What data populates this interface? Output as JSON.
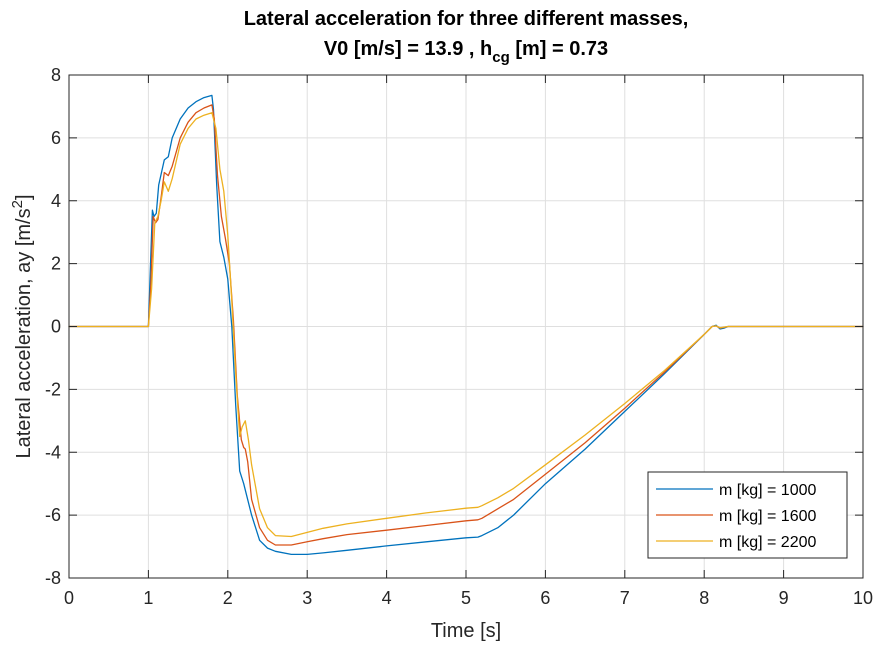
{
  "chart_data": {
    "type": "line",
    "title_line1": "Lateral acceleration for three different masses,",
    "title_line2_prefix": "V0 [m/s] = 13.9 , h",
    "title_line2_sub": "cg",
    "title_line2_suffix": " [m] = 0.73",
    "xlabel": "Time [s]",
    "ylabel_main": "Lateral acceleration, ay [m/s",
    "ylabel_sup": "2",
    "ylabel_end": "]",
    "xlim": [
      0,
      10
    ],
    "ylim": [
      -8,
      8
    ],
    "xticks": [
      "0",
      "1",
      "2",
      "3",
      "4",
      "5",
      "6",
      "7",
      "8",
      "9",
      "10"
    ],
    "yticks": [
      "-8",
      "-6",
      "-4",
      "-2",
      "0",
      "2",
      "4",
      "6",
      "8"
    ],
    "grid": true,
    "legend_position": "bottom-right",
    "series": [
      {
        "name": "m [kg] = 1000",
        "color": "#0072BD",
        "x": [
          0,
          1.0,
          1.02,
          1.05,
          1.07,
          1.1,
          1.13,
          1.2,
          1.25,
          1.3,
          1.4,
          1.5,
          1.6,
          1.7,
          1.8,
          1.82,
          1.86,
          1.9,
          1.95,
          2.0,
          2.05,
          2.1,
          2.15,
          2.2,
          2.3,
          2.4,
          2.5,
          2.6,
          2.8,
          3.0,
          3.2,
          3.5,
          4.0,
          4.5,
          5.0,
          5.15,
          5.2,
          5.4,
          5.6,
          6.0,
          6.5,
          7.0,
          7.5,
          8.0,
          8.1,
          8.15,
          8.2,
          8.25,
          8.3,
          8.5,
          9.0,
          9.5,
          10.0
        ],
        "y": [
          0,
          0,
          1.5,
          3.7,
          3.5,
          3.6,
          4.5,
          5.3,
          5.4,
          6.0,
          6.6,
          6.95,
          7.15,
          7.28,
          7.35,
          6.9,
          4.5,
          2.7,
          2.2,
          1.5,
          0.0,
          -2.5,
          -4.6,
          -5.0,
          -6.0,
          -6.8,
          -7.05,
          -7.15,
          -7.25,
          -7.25,
          -7.2,
          -7.12,
          -6.98,
          -6.85,
          -6.72,
          -6.7,
          -6.65,
          -6.4,
          -6.0,
          -5.0,
          -3.9,
          -2.7,
          -1.5,
          -0.25,
          0.0,
          0.04,
          -0.08,
          -0.05,
          0.0,
          0.0,
          0.0,
          0.0,
          0.0
        ]
      },
      {
        "name": "m [kg] = 1600",
        "color": "#D95319",
        "x": [
          0,
          1.0,
          1.03,
          1.06,
          1.09,
          1.12,
          1.16,
          1.2,
          1.25,
          1.3,
          1.4,
          1.5,
          1.6,
          1.7,
          1.8,
          1.83,
          1.87,
          1.92,
          1.97,
          2.02,
          2.07,
          2.12,
          2.17,
          2.2,
          2.22,
          2.25,
          2.3,
          2.4,
          2.5,
          2.6,
          2.8,
          3.0,
          3.2,
          3.5,
          4.0,
          4.5,
          5.0,
          5.15,
          5.2,
          5.4,
          5.6,
          6.0,
          6.5,
          7.0,
          7.5,
          8.0,
          8.1,
          8.15,
          8.2,
          8.25,
          8.3,
          8.5,
          9.0,
          9.5,
          10.0
        ],
        "y": [
          0,
          0,
          1.3,
          3.5,
          3.3,
          3.4,
          4.1,
          4.9,
          4.8,
          5.1,
          6.0,
          6.5,
          6.8,
          6.95,
          7.05,
          6.6,
          4.8,
          3.5,
          2.8,
          2.0,
          0.2,
          -2.2,
          -3.6,
          -3.85,
          -3.9,
          -4.3,
          -5.5,
          -6.4,
          -6.8,
          -6.95,
          -6.95,
          -6.85,
          -6.75,
          -6.62,
          -6.48,
          -6.33,
          -6.18,
          -6.15,
          -6.1,
          -5.8,
          -5.5,
          -4.7,
          -3.7,
          -2.6,
          -1.45,
          -0.25,
          0.0,
          0.02,
          -0.05,
          -0.03,
          0.0,
          0.0,
          0.0,
          0.0,
          0.0
        ]
      },
      {
        "name": "m [kg] = 2200",
        "color": "#EDB120",
        "x": [
          0,
          1.0,
          1.04,
          1.08,
          1.12,
          1.16,
          1.2,
          1.25,
          1.3,
          1.4,
          1.5,
          1.6,
          1.7,
          1.8,
          1.85,
          1.9,
          1.95,
          2.0,
          2.05,
          2.1,
          2.15,
          2.18,
          2.22,
          2.26,
          2.3,
          2.4,
          2.5,
          2.6,
          2.8,
          3.0,
          3.2,
          3.5,
          4.0,
          4.5,
          5.0,
          5.15,
          5.2,
          5.4,
          5.6,
          6.0,
          6.5,
          7.0,
          7.5,
          8.0,
          8.1,
          8.15,
          8.2,
          8.25,
          8.3,
          8.5,
          9.0,
          9.5,
          10.0
        ],
        "y": [
          0,
          0,
          1.2,
          3.3,
          3.5,
          4.0,
          4.6,
          4.3,
          4.7,
          5.8,
          6.3,
          6.6,
          6.72,
          6.8,
          6.3,
          5.0,
          4.3,
          2.9,
          0.8,
          -1.5,
          -3.5,
          -3.2,
          -3.0,
          -3.6,
          -4.4,
          -5.8,
          -6.4,
          -6.65,
          -6.68,
          -6.55,
          -6.42,
          -6.28,
          -6.1,
          -5.93,
          -5.78,
          -5.75,
          -5.7,
          -5.45,
          -5.15,
          -4.4,
          -3.45,
          -2.45,
          -1.4,
          -0.25,
          0.0,
          0.02,
          -0.04,
          -0.02,
          0.0,
          0.0,
          0.0,
          0.0,
          0.0
        ]
      }
    ]
  }
}
